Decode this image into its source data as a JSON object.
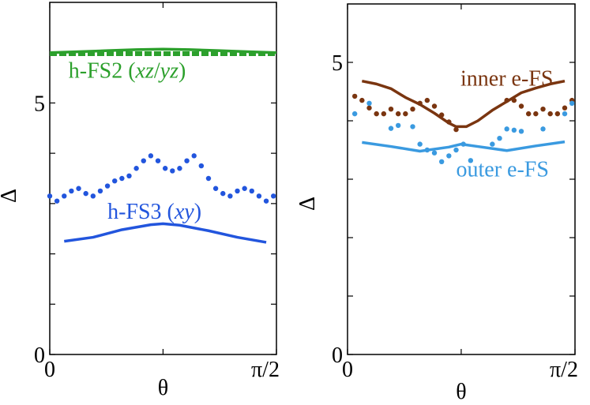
{
  "chart_data": [
    {
      "type": "line",
      "panel": "left",
      "xlabel": "θ",
      "ylabel": "Δ",
      "xlim": [
        0,
        1.5708
      ],
      "ylim": [
        0,
        7
      ],
      "x_ticks": [
        {
          "value": 0,
          "label": "0"
        },
        {
          "value": 1.5708,
          "label": "π/2"
        }
      ],
      "y_ticks": [
        {
          "value": 0,
          "label": "0"
        },
        {
          "value": 5,
          "label": "5"
        }
      ],
      "y_minor_ticks": [
        1,
        2,
        3,
        4,
        6
      ],
      "x_minor_ticks": [
        0.785
      ],
      "series": [
        {
          "name": "h-FS2 solid",
          "label_parts": [
            {
              "text": "h-FS2 (",
              "italic": false
            },
            {
              "text": "xz",
              "italic": true
            },
            {
              "text": "/",
              "italic": false
            },
            {
              "text": "yz",
              "italic": true
            },
            {
              "text": ")",
              "italic": false
            }
          ],
          "label_at": [
            0.13,
            5.5
          ],
          "color": "#2ca02c",
          "style": "solid",
          "x": [
            0,
            0.2,
            0.4,
            0.6,
            0.785,
            0.97,
            1.17,
            1.37,
            1.5708
          ],
          "y": [
            6.0,
            6.02,
            6.04,
            6.06,
            6.07,
            6.06,
            6.04,
            6.02,
            6.0
          ]
        },
        {
          "name": "h-FS2 dotted",
          "color": "#2ca02c",
          "style": "dashed",
          "x": [
            0,
            0.2,
            0.4,
            0.6,
            0.785,
            0.97,
            1.17,
            1.37,
            1.5708
          ],
          "y": [
            5.98,
            5.98,
            5.98,
            5.98,
            5.98,
            5.98,
            5.98,
            5.98,
            5.98
          ]
        },
        {
          "name": "h-FS3 dotted",
          "color": "#2255dd",
          "style": "dots",
          "x": [
            0.0,
            0.05,
            0.1,
            0.15,
            0.2,
            0.25,
            0.3,
            0.35,
            0.4,
            0.45,
            0.5,
            0.55,
            0.6,
            0.65,
            0.7,
            0.75,
            0.8,
            0.85,
            0.9,
            0.95,
            1.0,
            1.05,
            1.1,
            1.15,
            1.2,
            1.25,
            1.3,
            1.35,
            1.4,
            1.45,
            1.5,
            1.55
          ],
          "y": [
            3.15,
            3.05,
            3.15,
            3.25,
            3.3,
            3.2,
            3.15,
            3.25,
            3.35,
            3.45,
            3.5,
            3.55,
            3.7,
            3.85,
            3.95,
            3.85,
            3.7,
            3.65,
            3.7,
            3.85,
            3.95,
            3.75,
            3.5,
            3.3,
            3.2,
            3.15,
            3.25,
            3.3,
            3.25,
            3.15,
            3.05,
            3.15
          ]
        },
        {
          "name": "h-FS3 solid",
          "label_parts": [
            {
              "text": "h-FS3 (",
              "italic": false
            },
            {
              "text": "xy",
              "italic": true
            },
            {
              "text": ")",
              "italic": false
            }
          ],
          "label_at": [
            0.4,
            2.7
          ],
          "color": "#2255dd",
          "style": "solid",
          "x": [
            0.1,
            0.3,
            0.5,
            0.7,
            0.785,
            0.9,
            1.1,
            1.3,
            1.5
          ],
          "y": [
            2.25,
            2.33,
            2.48,
            2.58,
            2.6,
            2.57,
            2.46,
            2.33,
            2.23
          ]
        }
      ]
    },
    {
      "type": "line",
      "panel": "right",
      "xlabel": "θ",
      "ylabel": "Δ",
      "xlim": [
        0,
        1.5708
      ],
      "ylim": [
        0,
        6
      ],
      "x_ticks": [
        {
          "value": 0,
          "label": "0"
        },
        {
          "value": 1.5708,
          "label": "π/2"
        }
      ],
      "y_ticks": [
        {
          "value": 0,
          "label": "0"
        },
        {
          "value": 5,
          "label": "5"
        }
      ],
      "y_minor_ticks": [
        1,
        2,
        3,
        4
      ],
      "x_minor_ticks": [
        0.785
      ],
      "series": [
        {
          "name": "inner e-FS solid",
          "label_parts": [
            {
              "text": "inner e-FS",
              "italic": false
            }
          ],
          "label_at": [
            0.78,
            4.6
          ],
          "color": "#7a3510",
          "style": "solid",
          "x": [
            0.1,
            0.2,
            0.3,
            0.4,
            0.5,
            0.6,
            0.7,
            0.75,
            0.82,
            0.9,
            1.0,
            1.1,
            1.2,
            1.3,
            1.4,
            1.5
          ],
          "y": [
            4.68,
            4.63,
            4.55,
            4.4,
            4.28,
            4.13,
            3.96,
            3.9,
            3.9,
            4.0,
            4.18,
            4.33,
            4.48,
            4.56,
            4.63,
            4.68
          ]
        },
        {
          "name": "inner e-FS dotted",
          "color": "#7a3510",
          "style": "dots",
          "x": [
            0.05,
            0.1,
            0.15,
            0.2,
            0.25,
            0.3,
            0.35,
            0.4,
            0.45,
            0.5,
            0.55,
            0.6,
            0.65,
            0.7,
            0.75,
            1.1,
            1.15,
            1.2,
            1.25,
            1.3,
            1.35,
            1.4,
            1.45,
            1.5,
            1.55
          ],
          "y": [
            4.42,
            4.35,
            4.22,
            4.12,
            4.12,
            4.2,
            4.12,
            4.12,
            4.2,
            4.3,
            4.35,
            4.25,
            4.1,
            3.98,
            3.85,
            4.35,
            4.35,
            4.25,
            4.12,
            4.12,
            4.2,
            4.12,
            4.12,
            4.22,
            4.35
          ]
        },
        {
          "name": "outer e-FS dotted",
          "color": "#3a9ae0",
          "style": "dots",
          "x": [
            0.05,
            0.15,
            0.3,
            0.35,
            0.45,
            0.5,
            0.55,
            0.6,
            0.65,
            0.7,
            0.75,
            0.8,
            0.85,
            1.0,
            1.05,
            1.1,
            1.15,
            1.2,
            1.35,
            1.5,
            1.55
          ],
          "y": [
            4.12,
            4.3,
            3.87,
            3.92,
            3.9,
            3.6,
            3.5,
            3.45,
            3.3,
            3.4,
            3.5,
            3.6,
            3.32,
            3.6,
            3.7,
            3.86,
            3.84,
            3.82,
            3.86,
            4.12,
            4.3
          ]
        },
        {
          "name": "outer e-FS solid",
          "label_parts": [
            {
              "text": "outer e-FS",
              "italic": false
            }
          ],
          "label_at": [
            0.75,
            3.05
          ],
          "color": "#3a9ae0",
          "style": "solid",
          "x": [
            0.1,
            0.3,
            0.5,
            0.7,
            0.785,
            0.9,
            1.1,
            1.3,
            1.5
          ],
          "y": [
            3.63,
            3.56,
            3.48,
            3.55,
            3.6,
            3.56,
            3.49,
            3.57,
            3.64
          ]
        }
      ]
    }
  ]
}
